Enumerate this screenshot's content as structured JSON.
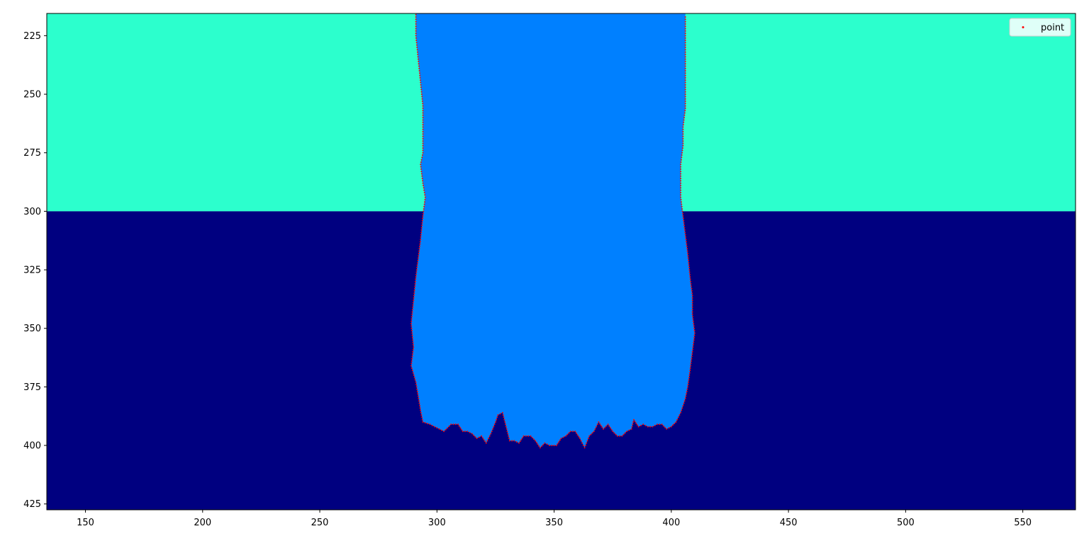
{
  "chart_data": {
    "type": "image",
    "title": "",
    "xlabel": "",
    "ylabel": "",
    "xlim": [
      133.5,
      572.5
    ],
    "ylim": [
      427.5,
      215.5
    ],
    "y_inverted": true,
    "x_ticks": [
      150,
      200,
      250,
      300,
      350,
      400,
      450,
      500,
      550
    ],
    "y_ticks": [
      225,
      250,
      275,
      300,
      325,
      350,
      375,
      400,
      425
    ],
    "background_regions": [
      {
        "name": "upper band",
        "y_range": [
          215.5,
          300
        ],
        "color": "#2cffcd"
      },
      {
        "name": "lower band",
        "y_range": [
          300,
          427.5
        ],
        "color": "#000080"
      }
    ],
    "segmented_region": {
      "name": "blob",
      "color": "#0080ff",
      "outline": [
        [
          291,
          216
        ],
        [
          291,
          225
        ],
        [
          292,
          235
        ],
        [
          293,
          245
        ],
        [
          294,
          255
        ],
        [
          294,
          265
        ],
        [
          294,
          275
        ],
        [
          293,
          280
        ],
        [
          294,
          288
        ],
        [
          295,
          294
        ],
        [
          294,
          302
        ],
        [
          293,
          312
        ],
        [
          292,
          320
        ],
        [
          291,
          328
        ],
        [
          290,
          338
        ],
        [
          289,
          348
        ],
        [
          290,
          358
        ],
        [
          289,
          366
        ],
        [
          291,
          373
        ],
        [
          292,
          379
        ],
        [
          293,
          385
        ],
        [
          294,
          390
        ],
        [
          297,
          391
        ],
        [
          301,
          393
        ],
        [
          303,
          394
        ],
        [
          306,
          391
        ],
        [
          309,
          391
        ],
        [
          311,
          394
        ],
        [
          313,
          394
        ],
        [
          315,
          395
        ],
        [
          317,
          397
        ],
        [
          319,
          396
        ],
        [
          321,
          399
        ],
        [
          323,
          395
        ],
        [
          325,
          390
        ],
        [
          326,
          387
        ],
        [
          328,
          386
        ],
        [
          329,
          390
        ],
        [
          331,
          398
        ],
        [
          333,
          398
        ],
        [
          335,
          399
        ],
        [
          337,
          396
        ],
        [
          340,
          396
        ],
        [
          342,
          398
        ],
        [
          344,
          401
        ],
        [
          346,
          399
        ],
        [
          348,
          400
        ],
        [
          351,
          400
        ],
        [
          353,
          397
        ],
        [
          355,
          396
        ],
        [
          357,
          394
        ],
        [
          359,
          394
        ],
        [
          361,
          397
        ],
        [
          363,
          401
        ],
        [
          365,
          396
        ],
        [
          367,
          394
        ],
        [
          369,
          390
        ],
        [
          371,
          393
        ],
        [
          373,
          391
        ],
        [
          375,
          394
        ],
        [
          377,
          396
        ],
        [
          379,
          396
        ],
        [
          381,
          394
        ],
        [
          383,
          393
        ],
        [
          384,
          389
        ],
        [
          386,
          392
        ],
        [
          388,
          391
        ],
        [
          390,
          392
        ],
        [
          392,
          392
        ],
        [
          394,
          391
        ],
        [
          396,
          391
        ],
        [
          398,
          393
        ],
        [
          400,
          392
        ],
        [
          402,
          390
        ],
        [
          404,
          386
        ],
        [
          406,
          380
        ],
        [
          407,
          375
        ],
        [
          408,
          368
        ],
        [
          409,
          360
        ],
        [
          410,
          352
        ],
        [
          409,
          344
        ],
        [
          409,
          336
        ],
        [
          408,
          328
        ],
        [
          407,
          318
        ],
        [
          406,
          310
        ],
        [
          405,
          302
        ],
        [
          404,
          294
        ],
        [
          404,
          287
        ],
        [
          404,
          280
        ],
        [
          405,
          272
        ],
        [
          405,
          264
        ],
        [
          406,
          256
        ],
        [
          406,
          248
        ],
        [
          406,
          240
        ],
        [
          406,
          232
        ],
        [
          406,
          225
        ],
        [
          406,
          216
        ]
      ]
    },
    "series": [
      {
        "name": "point",
        "marker": ".",
        "color": "#ff0000",
        "description": "boundary points along the blob outline"
      }
    ],
    "legend": {
      "location": "upper right",
      "entries": [
        "point"
      ]
    }
  },
  "colors": {
    "upper_band": "#2cffcd",
    "lower_band": "#000080",
    "blob": "#0080ff",
    "points": "#ff0000"
  }
}
